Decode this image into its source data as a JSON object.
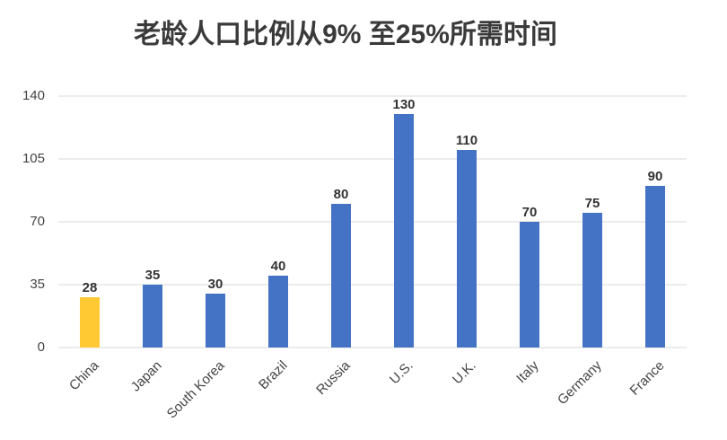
{
  "chart_data": {
    "type": "bar",
    "title": "老龄人口比例从9% 至25%所需时间",
    "categories": [
      "China",
      "Japan",
      "South Korea",
      "Brazil",
      "Russia",
      "U.S.",
      "U.K.",
      "Italy",
      "Germany",
      "France"
    ],
    "values": [
      28,
      35,
      30,
      40,
      80,
      130,
      110,
      70,
      75,
      90
    ],
    "colors": [
      "#ffc933",
      "#4472c4",
      "#4472c4",
      "#4472c4",
      "#4472c4",
      "#4472c4",
      "#4472c4",
      "#4472c4",
      "#4472c4",
      "#4472c4"
    ],
    "ylim": [
      0,
      140
    ],
    "yticks": [
      0,
      35,
      70,
      105,
      140
    ],
    "grid": true
  }
}
